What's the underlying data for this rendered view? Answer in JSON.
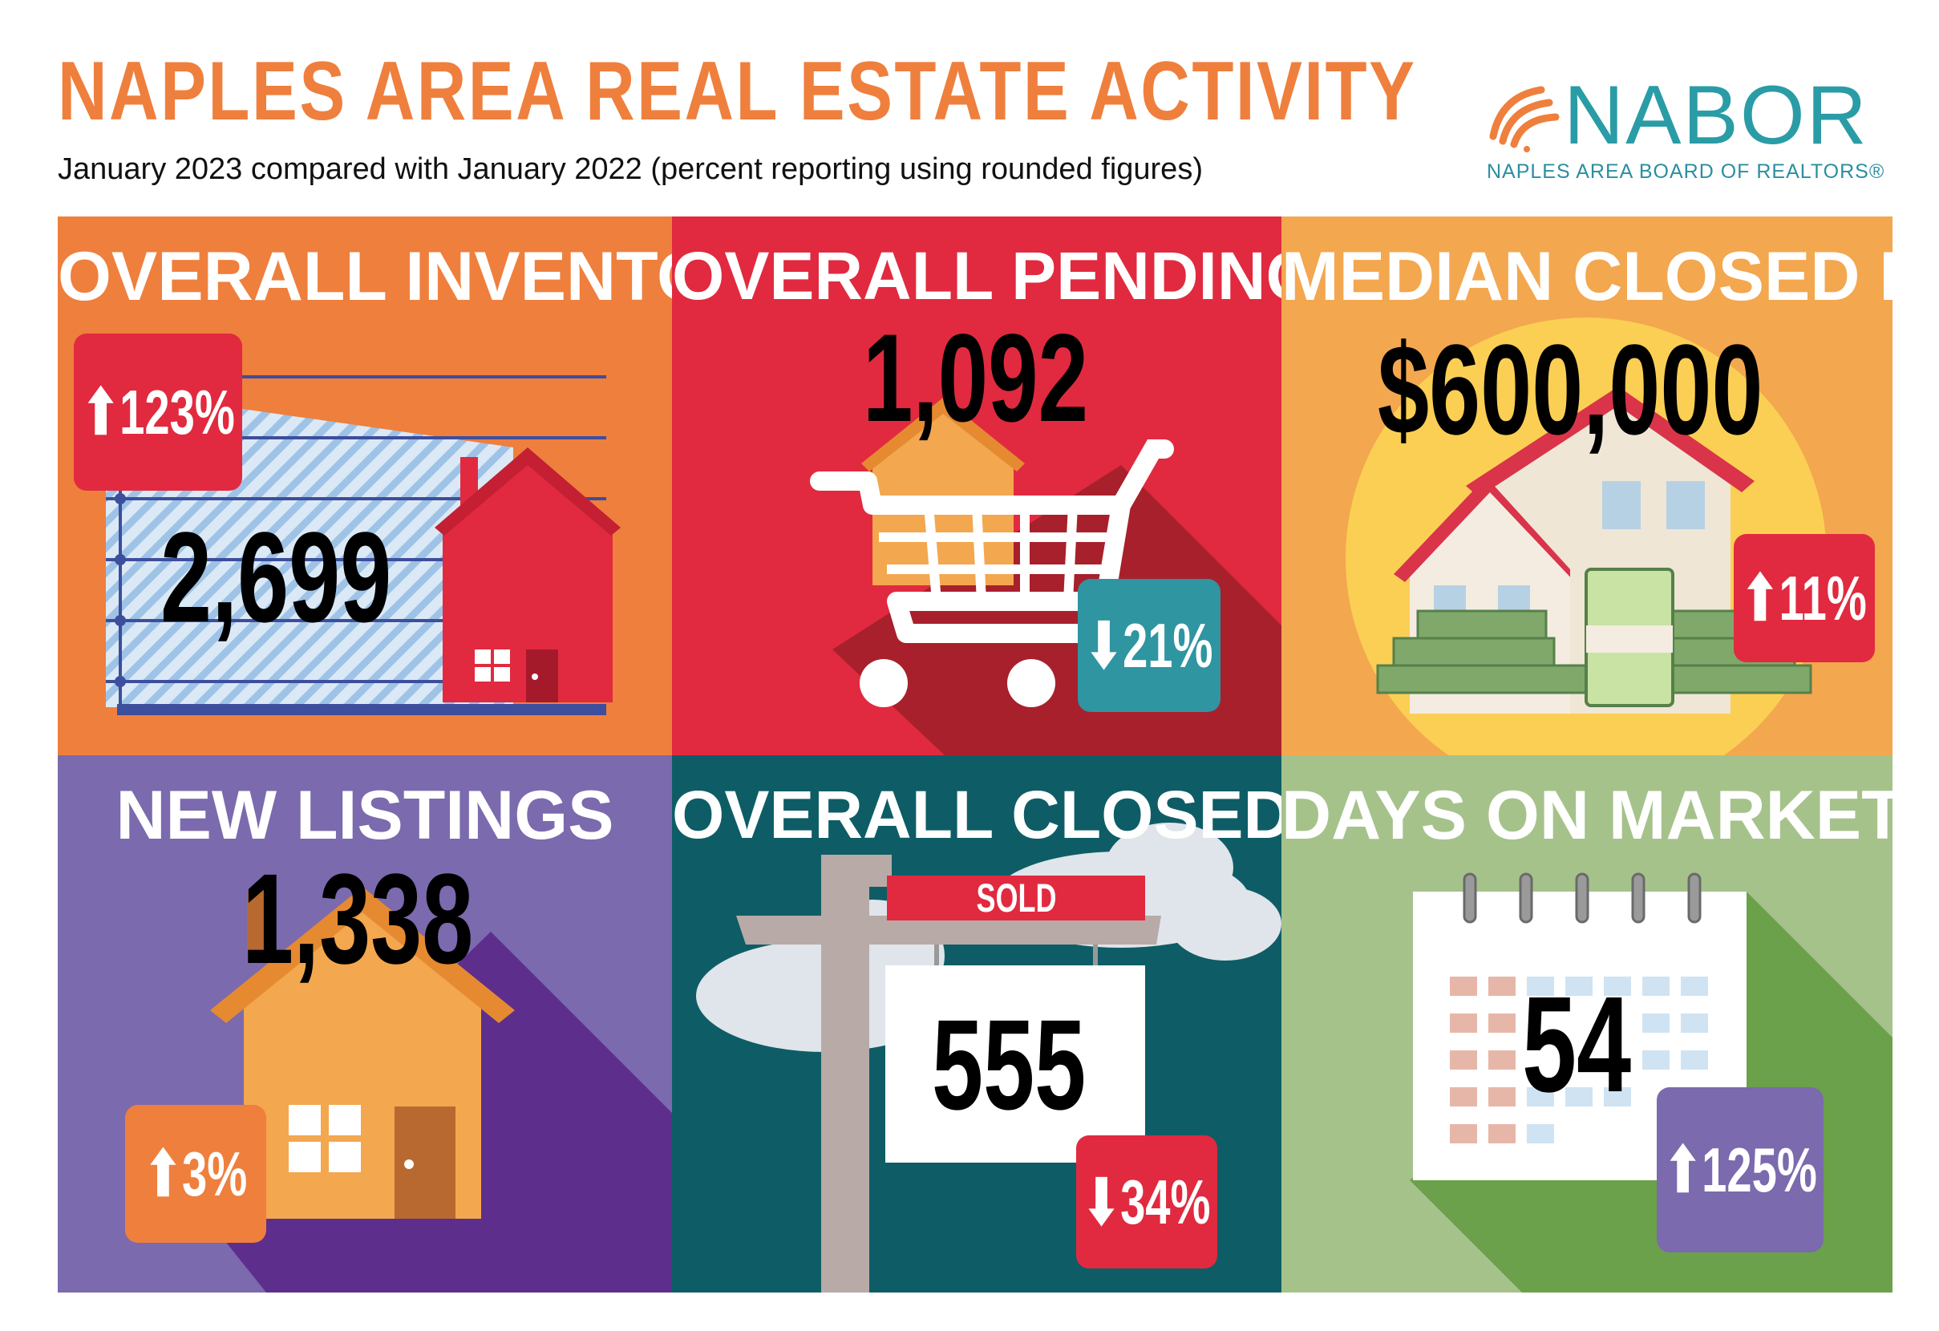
{
  "header": {
    "title": "NAPLES AREA REAL ESTATE ACTIVITY",
    "subtitle": "January 2023 compared with January 2022 (percent reporting using rounded figures)"
  },
  "logo": {
    "name": "NABOR",
    "tagline": "NAPLES AREA BOARD OF REALTORS®",
    "icon": "shell-icon"
  },
  "colors": {
    "orange": "#ef7f3d",
    "red": "#e12a3f",
    "light_orange": "#f3a74f",
    "purple": "#7b6aad",
    "teal": "#0e5d66",
    "green": "#a5c28b",
    "teal_badge": "#2e95a1",
    "badge_red": "#e12a3f"
  },
  "panels": {
    "inventory": {
      "title": "OVERALL INVENTORY",
      "value": "2,699",
      "change": "123%",
      "direction": "up",
      "icon": "house-chart-icon"
    },
    "pending": {
      "title": "OVERALL PENDING SALES",
      "value": "1,092",
      "change": "21%",
      "direction": "down",
      "icon": "shopping-cart-icon"
    },
    "median": {
      "title": "MEDIAN CLOSED PRICE",
      "value": "$600,000",
      "change": "11%",
      "direction": "up",
      "icon": "house-money-icon"
    },
    "listings": {
      "title": "NEW LISTINGS",
      "value": "1,338",
      "change": "3%",
      "direction": "up",
      "icon": "house-icon"
    },
    "closed": {
      "title": "OVERALL CLOSED SALES",
      "value": "555",
      "change": "34%",
      "direction": "down",
      "sign_text": "SOLD",
      "icon": "sold-sign-icon"
    },
    "days": {
      "title": "DAYS ON MARKET",
      "value": "54",
      "change": "125%",
      "direction": "up",
      "icon": "calendar-icon"
    }
  },
  "arrows": {
    "up": "⬆",
    "down": "⬇"
  }
}
